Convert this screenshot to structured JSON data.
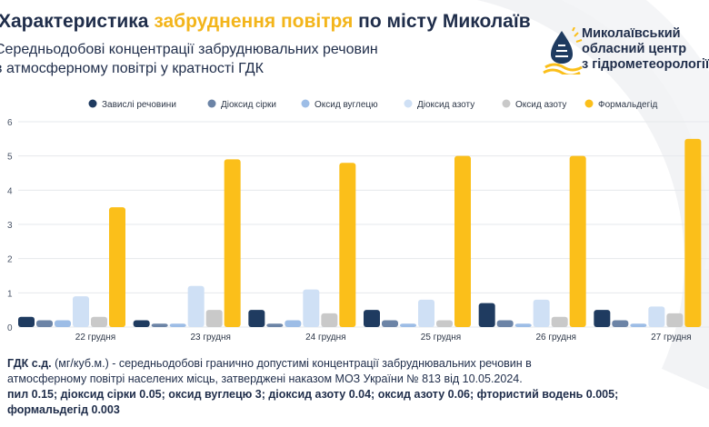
{
  "header": {
    "title_part1": "Характеристика ",
    "title_accent": "забруднення повітря",
    "title_part2": " по місту Миколаїв",
    "subtitle_line1": "Середньодобові концентрації забруднювальних речовин",
    "subtitle_line2": "в атмосферному повітрі у кратності ГДК",
    "org_line1": "Миколаївський",
    "org_line2": "обласний центр",
    "org_line3": "з гідрометеорології"
  },
  "colors": {
    "navy": "#1f3b60",
    "steel": "#6c84a6",
    "light_blue": "#9dbde6",
    "pale_blue": "#cfe0f5",
    "gray": "#c9c9c9",
    "yellow": "#fbbf1a",
    "accent": "#f3b51b",
    "text": "#1f2d4a"
  },
  "chart_data": {
    "type": "bar",
    "categories": [
      "22 грудня",
      "23 грудня",
      "24 грудня",
      "25 грудня",
      "26 грудня",
      "27 грудня"
    ],
    "ylim": [
      0,
      6
    ],
    "yticks": [
      "0",
      "1",
      "2",
      "3",
      "4",
      "5",
      "6"
    ],
    "grid": true,
    "legend_position": "top",
    "series": [
      {
        "name": "Завислі речовини",
        "color": "#1f3b60",
        "values": [
          0.3,
          0.2,
          0.5,
          0.5,
          0.7,
          0.5
        ]
      },
      {
        "name": "Діоксид сірки",
        "color": "#6c84a6",
        "values": [
          0.2,
          0.1,
          0.1,
          0.2,
          0.2,
          0.2
        ]
      },
      {
        "name": "Оксид вуглецю",
        "color": "#9dbde6",
        "values": [
          0.2,
          0.1,
          0.2,
          0.1,
          0.1,
          0.1
        ]
      },
      {
        "name": "Діоксид азоту",
        "color": "#cfe0f5",
        "values": [
          0.9,
          1.2,
          1.1,
          0.8,
          0.8,
          0.6
        ]
      },
      {
        "name": "Оксид азоту",
        "color": "#c9c9c9",
        "values": [
          0.3,
          0.5,
          0.4,
          0.2,
          0.3,
          0.4
        ]
      },
      {
        "name": "Формальдегід",
        "color": "#fbbf1a",
        "values": [
          3.5,
          4.9,
          4.8,
          5.0,
          5.0,
          5.5
        ]
      }
    ]
  },
  "footer": {
    "line1_bold": "ГДК с.д.",
    "line1_rest": " (мг/куб.м.) - середньодобові гранично допустимі концентрації забруднювальних речовин в",
    "line2": "атмосферному повітрі населених місць, затверджені наказом МОЗ України № 813 від 10.05.2024.",
    "line3": "пил 0.15; діоксид сірки 0.05; оксид вуглецю 3; діоксид азоту 0.04; оксид азоту 0.06; фтористий водень 0.005;",
    "line4": "формальдегід 0.003"
  }
}
